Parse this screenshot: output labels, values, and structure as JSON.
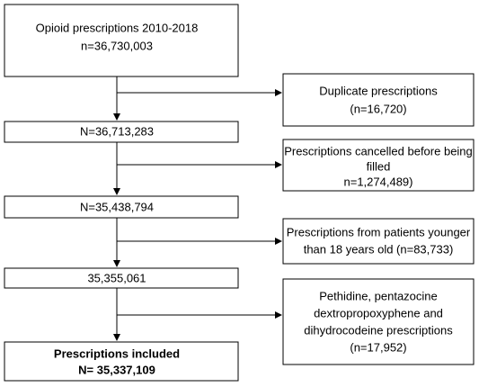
{
  "nodes": [
    {
      "lines": [
        "Opioid prescriptions 2010-2018",
        "n=36,730,003"
      ]
    },
    {
      "lines": [
        "Duplicate prescriptions",
        "(n=16,720)"
      ]
    },
    {
      "lines": [
        "N=36,713,283"
      ]
    },
    {
      "lines": [
        "Prescriptions cancelled before being",
        "filled",
        "n=1,274,489)"
      ]
    },
    {
      "lines": [
        "N=35,438,794"
      ]
    },
    {
      "lines": [
        "Prescriptions from patients younger",
        "than 18 years old (n=83,733)"
      ]
    },
    {
      "lines": [
        "35,355,061"
      ]
    },
    {
      "lines": [
        "Pethidine, pentazocine",
        "dextropropoxyphene and",
        "dihydrocodeine prescriptions",
        "(n=17,952)"
      ]
    },
    {
      "lines": [
        "Prescriptions included",
        "N= 35,337,109"
      ]
    }
  ]
}
